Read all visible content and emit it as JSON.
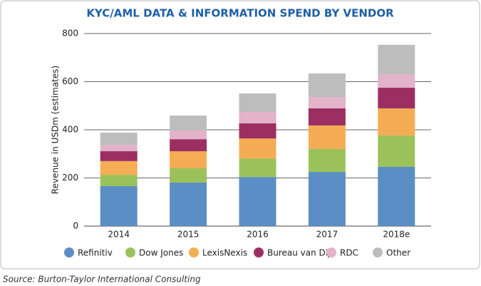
{
  "chart_data": {
    "type": "stacked_bar",
    "title": "KYC/AML DATA & INFORMATION SPEND BY VENDOR",
    "y_label": "Revenue in USDm (estimates)",
    "source": "Source: Burton-Taylor International Consulting",
    "categories": [
      "2014",
      "2015",
      "2016",
      "2017",
      "2018e"
    ],
    "series": [
      {
        "name": "Refinitiv",
        "color": "#5b8ec4",
        "values": [
          166,
          181,
          204,
          225,
          246
        ]
      },
      {
        "name": "Dow Jones",
        "color": "#9bc25a",
        "values": [
          47,
          59,
          77,
          95,
          130
        ]
      },
      {
        "name": "LexisNexis",
        "color": "#f4ad55",
        "values": [
          57,
          71,
          83,
          98,
          113
        ]
      },
      {
        "name": "Bureau van Dijk",
        "color": "#9c2f62",
        "values": [
          41,
          50,
          63,
          71,
          86
        ]
      },
      {
        "name": "RDC",
        "color": "#e2b3c9",
        "values": [
          27,
          36,
          47,
          47,
          56
        ]
      },
      {
        "name": "Other",
        "color": "#bdbdbd",
        "values": [
          50,
          62,
          77,
          98,
          122
        ]
      }
    ],
    "ylim": [
      0,
      800
    ],
    "yticks": [
      0,
      200,
      400,
      600,
      800
    ],
    "grid": true,
    "legend": "bottom"
  }
}
